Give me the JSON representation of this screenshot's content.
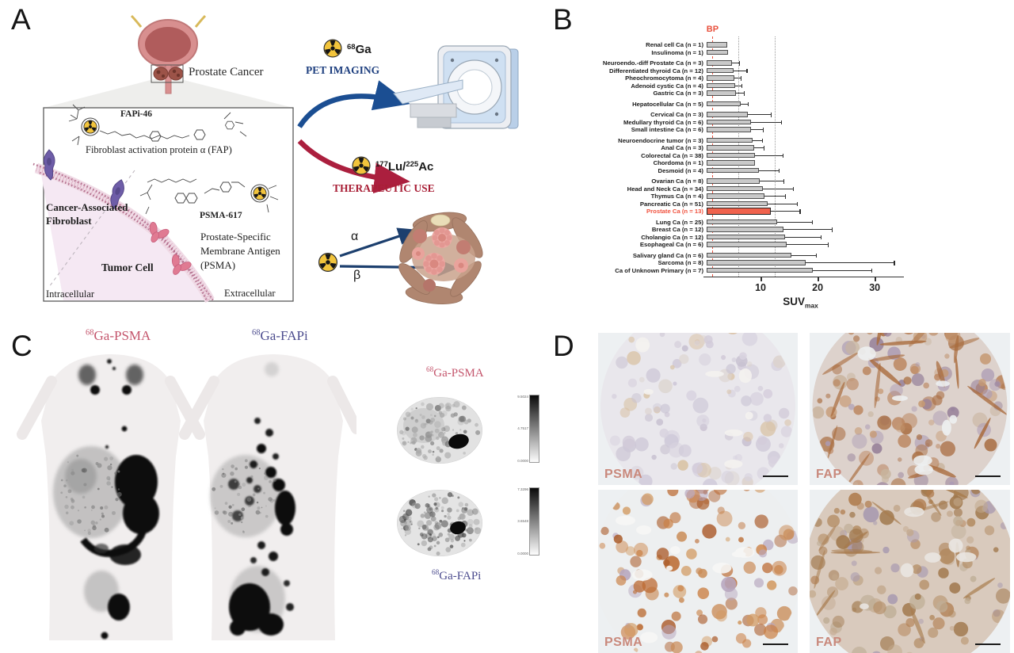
{
  "figure": {
    "panel_labels": [
      "A",
      "B",
      "C",
      "D"
    ]
  },
  "panel_a": {
    "prostate_cancer_label": "Prostate Cancer",
    "fapi46_label": "FAPi-46",
    "fap_label": "Fibroblast activation protein α (FAP)",
    "caf_label_line1": "Cancer-Associated",
    "caf_label_line2": "Fibroblast",
    "psma617_label": "PSMA-617",
    "psma_label_line1": "Prostate-Specific",
    "psma_label_line2": "Membrane Antigen",
    "psma_label_line3": "(PSMA)",
    "tumor_cell_label": "Tumor Cell",
    "intracellular_label": "Intracellular",
    "extracellular_label": "Extracellular",
    "ga68": {
      "sup": "68",
      "text": "Ga"
    },
    "pet_imaging_label": "PET IMAGING",
    "lu_ac": {
      "sup1": "177",
      "mid": "Lu/",
      "sup2": "225",
      "end": "Ac"
    },
    "therapeutic_use_label": "THERAPEUTIC USE",
    "alpha_label": "α",
    "beta_label": "β",
    "colors": {
      "pet_blue": "#1e3f7f",
      "therapy_red": "#a81e35",
      "arrow_blue": "#1b4e92",
      "arrow_red": "#ab1f3e"
    }
  },
  "chart_data": {
    "type": "bar",
    "orientation": "horizontal",
    "categories": [
      "Renal cell Ca (n = 1)",
      "Insulinoma (n = 1)",
      "Neuroendo.-diff Prostate Ca (n = 3)",
      "Differentiated thyroid Ca (n = 12)",
      "Pheochromocytoma (n = 4)",
      "Adenoid cystic Ca (n = 4)",
      "Gastric Ca (n = 3)",
      "Hepatocellular Ca (n = 5)",
      "Cervical Ca (n = 3)",
      "Medullary thyroid Ca (n = 6)",
      "Small intestine Ca (n = 6)",
      "Neuroendocrine tumor (n = 3)",
      "Anal Ca (n = 3)",
      "Colorectal Ca (n = 38)",
      "Chordoma (n = 1)",
      "Desmoid (n = 4)",
      "Ovarian Ca (n = 8)",
      "Head and Neck Ca (n = 34)",
      "Thymus Ca (n = 4)",
      "Pancreatic Ca (n = 51)",
      "Prostate Ca (n = 13)",
      "Lung Ca (n = 25)",
      "Breast Ca (n = 12)",
      "Cholangio Ca (n = 12)",
      "Esophageal Ca (n = 6)",
      "Salivary gland Ca (n = 6)",
      "Sarcoma (n = 8)",
      "Ca of Unknown Primary (n = 7)"
    ],
    "values": [
      3.6,
      3.8,
      4.4,
      4.7,
      4.9,
      5.0,
      5.1,
      6.0,
      7.2,
      7.8,
      7.8,
      8.1,
      8.3,
      8.4,
      8.5,
      9.1,
      9.3,
      9.8,
      10.1,
      10.7,
      11.3,
      12.3,
      13.5,
      13.7,
      14.0,
      14.9,
      17.4,
      18.6
    ],
    "upper_errors": [
      null,
      null,
      5.7,
      7.0,
      6.0,
      6.1,
      6.5,
      7.2,
      11.2,
      13.0,
      9.8,
      9.7,
      10.0,
      13.3,
      null,
      12.6,
      13.5,
      15.1,
      13.7,
      15.8,
      16.3,
      18.4,
      21.9,
      20.0,
      21.2,
      19.1,
      32.8,
      28.8
    ],
    "highlight_index": 20,
    "group_gap_after": [
      1,
      6,
      7,
      10,
      15,
      20,
      24
    ],
    "bar_color": "#c9c9c9",
    "bar_border_color": "#4f4f4f",
    "highlight_color": "#f0624d",
    "highlight_label_color": "#f0503c",
    "xlabel": {
      "text": "SUV",
      "sub": "max"
    },
    "xticks": [
      10,
      20,
      30
    ],
    "xlim": [
      0,
      34
    ],
    "reference_lines": [
      {
        "x": 1.5,
        "color": "#e8503c",
        "style": "dashed",
        "label": "BP"
      },
      {
        "x": 6.1,
        "color": "#9a9a9a",
        "style": "dotted",
        "label": ""
      },
      {
        "x": 12.5,
        "color": "#9a9a9a",
        "style": "dotted",
        "label": ""
      }
    ]
  },
  "panel_c": {
    "mip_psma_label": {
      "sup": "68",
      "text": "Ga-PSMA"
    },
    "mip_fapi_label": {
      "sup": "68",
      "text": "Ga-FAPi"
    },
    "axial_psma_label": {
      "sup": "68",
      "text": "Ga-PSMA"
    },
    "axial_fapi_label": {
      "sup": "68",
      "text": "Ga-FAPi"
    },
    "colorbar_psma": {
      "max": "9.5024",
      "mid": "4.7517",
      "min": "0.0000"
    },
    "colorbar_fapi": {
      "max": "7.3296",
      "mid": "3.6548",
      "min": "0.0000"
    },
    "colors": {
      "psma_pink": "#c4556c",
      "fapi_purple": "#4c4c8e"
    }
  },
  "panel_d": {
    "tiles": [
      {
        "label": "PSMA",
        "stain": "weak"
      },
      {
        "label": "FAP",
        "stain": "positive"
      },
      {
        "label": "PSMA",
        "stain": "strong"
      },
      {
        "label": "FAP",
        "stain": "diffuse"
      }
    ],
    "label_color": "#c9897c"
  }
}
